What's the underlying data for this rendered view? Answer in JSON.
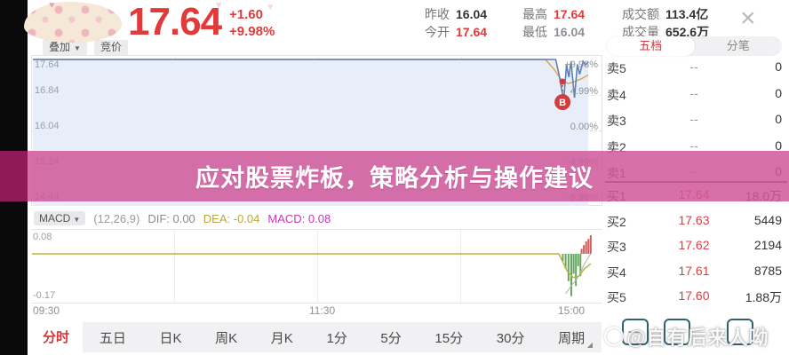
{
  "palette": {
    "accent_red": "#e23a3a",
    "buy_price_red": "#d9404a",
    "banner_pink": "#d0589a",
    "banner_dark": "#8e1b58",
    "price_line_blue": "#5b7fb8",
    "avg_line_orange": "#e2a13f",
    "macd_green": "#63a85e",
    "macd_bar_red": "#d45c5c",
    "dea_yellow": "#b7b33c",
    "macd_magenta": "#c438b8",
    "fill_blue": "#e7eefa"
  },
  "header": {
    "price": "17.64",
    "change": "+1.60",
    "change_pct": "+9.98%",
    "stats": [
      {
        "label": "昨收",
        "value": "16.04"
      },
      {
        "label": "今开",
        "value": "17.64"
      },
      {
        "label": "最高",
        "value": "17.64"
      },
      {
        "label": "最低",
        "value": "16.04"
      },
      {
        "label": "成交额",
        "value": "113.4亿"
      },
      {
        "label": "成交量",
        "value": "652.6万"
      }
    ],
    "close_icon": "×"
  },
  "toolbar": {
    "overlay": "叠加",
    "overlay_caret": "▼",
    "bidding": "竞价"
  },
  "banner": {
    "text": "应对股票炸板，策略分析与操作建议"
  },
  "order_panel": {
    "tabs": [
      {
        "label": "五档"
      },
      {
        "label": "分笔"
      }
    ],
    "rows_sell": [
      {
        "label": "卖5",
        "price": "--",
        "volume": "0"
      },
      {
        "label": "卖4",
        "price": "--",
        "volume": "0"
      },
      {
        "label": "卖3",
        "price": "--",
        "volume": "0"
      },
      {
        "label": "卖2",
        "price": "--",
        "volume": "0"
      },
      {
        "label": "卖1",
        "price": "--",
        "volume": "0"
      }
    ],
    "rows_buy": [
      {
        "label": "买1",
        "price": "17.64",
        "volume": "18.0万"
      },
      {
        "label": "买2",
        "price": "17.63",
        "volume": "5449"
      },
      {
        "label": "买3",
        "price": "17.62",
        "volume": "2194"
      },
      {
        "label": "买4",
        "price": "17.61",
        "volume": "8785"
      },
      {
        "label": "买5",
        "price": "17.60",
        "volume": "1.88万"
      }
    ]
  },
  "macd_header": {
    "name": "MACD",
    "caret": "▼",
    "params": "(12,26,9)",
    "dif_text": "DIF: 0.00",
    "dea_text": "DEA: -0.04",
    "macd_text": "MACD: 0.08"
  },
  "chart_data": [
    {
      "type": "line",
      "name": "分时走势",
      "prev_close": 16.04,
      "ylim_pct": [
        -9.98,
        9.98
      ],
      "y_axis_price": [
        "17.64",
        "16.84",
        "16.04",
        "15.24",
        "14.44"
      ],
      "y_axis_pct": [
        "+9.98%",
        "4.99%",
        "0.00%",
        "-4.99%",
        "-9.98%"
      ],
      "x_ticks": [
        "09:30",
        "11:30",
        "15:00"
      ],
      "series": [
        {
          "name": "price",
          "points": [
            [
              0,
              9.98
            ],
            [
              0.918,
              9.98
            ],
            [
              0.924,
              7.8
            ],
            [
              0.932,
              4.2
            ],
            [
              0.937,
              9.2
            ],
            [
              0.941,
              7.5
            ],
            [
              0.945,
              9.7
            ],
            [
              0.951,
              4.6
            ],
            [
              0.956,
              9.3
            ],
            [
              0.96,
              7.9
            ],
            [
              0.966,
              9.7
            ],
            [
              0.97,
              9.2
            ],
            [
              0.975,
              9.6
            ]
          ]
        },
        {
          "name": "avg_price",
          "points": [
            [
              0,
              9.98
            ],
            [
              0.9,
              9.98
            ],
            [
              0.916,
              8.5
            ],
            [
              0.928,
              7.1
            ],
            [
              0.94,
              6.6
            ],
            [
              0.952,
              6.9
            ],
            [
              0.964,
              7.3
            ],
            [
              0.975,
              7.8
            ]
          ]
        }
      ],
      "buy_marker": {
        "x": 0.93,
        "dot_pct": 6.86,
        "badge_pct": 3.98,
        "label": "B"
      }
    },
    {
      "type": "macd",
      "name": "MACD(12,26,9)",
      "dif": 0.0,
      "dea": -0.04,
      "macd": 0.08,
      "ylim": [
        -0.17,
        0.08
      ],
      "y_top_label": "0.08",
      "y_bottom_label": "-0.17",
      "bars": [
        [
          0.932,
          -0.03
        ],
        [
          0.937,
          -0.06
        ],
        [
          0.942,
          -0.11
        ],
        [
          0.947,
          -0.17
        ],
        [
          0.951,
          -0.08
        ],
        [
          0.955,
          -0.13
        ],
        [
          0.959,
          -0.05
        ],
        [
          0.963,
          -0.09
        ],
        [
          0.965,
          0.02
        ],
        [
          0.969,
          0.035
        ],
        [
          0.973,
          0.05
        ],
        [
          0.977,
          0.06
        ],
        [
          0.981,
          0.075
        ]
      ],
      "dea_line": [
        [
          0,
          0
        ],
        [
          0.925,
          0
        ],
        [
          0.94,
          -0.07
        ],
        [
          0.95,
          -0.095
        ],
        [
          0.96,
          -0.09
        ],
        [
          0.97,
          -0.06
        ],
        [
          0.981,
          -0.04
        ]
      ],
      "dif_line": [
        [
          0.937,
          -0.16
        ],
        [
          0.95,
          -0.12
        ],
        [
          0.96,
          -0.09
        ],
        [
          0.97,
          -0.04
        ],
        [
          0.981,
          0
        ]
      ]
    }
  ],
  "period_tabs": [
    {
      "label": "分时",
      "active": true
    },
    {
      "label": "五日"
    },
    {
      "label": "日K"
    },
    {
      "label": "周K"
    },
    {
      "label": "月K"
    },
    {
      "label": "1分"
    },
    {
      "label": "5分"
    },
    {
      "label": "15分"
    },
    {
      "label": "30分"
    },
    {
      "label": "周期",
      "caret": "◢"
    }
  ],
  "mini_buttons": [
    {
      "glyph": "—"
    },
    {
      "glyph": ""
    },
    {
      "glyph": ""
    }
  ],
  "watermark": {
    "text": "@自有后来人呦"
  }
}
